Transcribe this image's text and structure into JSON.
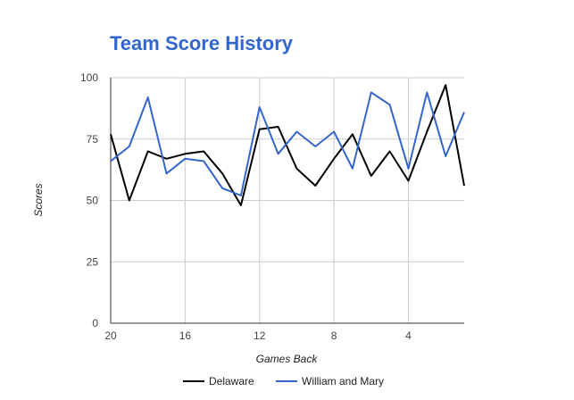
{
  "chart_data": {
    "type": "line",
    "title": "Team Score History",
    "xlabel": "Games Back",
    "ylabel": "Scores",
    "x": [
      20,
      19,
      18,
      17,
      16,
      15,
      14,
      13,
      12,
      11,
      10,
      9,
      8,
      7,
      6,
      5,
      4,
      3,
      2,
      1
    ],
    "xlim": [
      20,
      1
    ],
    "ylim": [
      0,
      100
    ],
    "x_ticks": [
      20,
      16,
      12,
      8,
      4
    ],
    "y_ticks": [
      0,
      25,
      50,
      75,
      100
    ],
    "grid": true,
    "legend_position": "bottom",
    "series": [
      {
        "name": "Delaware",
        "color": "#000000",
        "values": [
          77,
          50,
          70,
          67,
          69,
          70,
          61,
          48,
          79,
          80,
          63,
          56,
          67,
          77,
          60,
          70,
          58,
          78,
          97,
          56
        ]
      },
      {
        "name": "William and Mary",
        "color": "#3366cc",
        "values": [
          66,
          72,
          92,
          61,
          67,
          66,
          55,
          52,
          88,
          69,
          78,
          72,
          78,
          63,
          94,
          89,
          63,
          94,
          68,
          86
        ]
      }
    ]
  }
}
